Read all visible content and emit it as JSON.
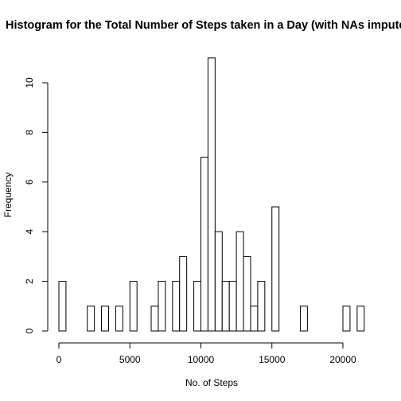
{
  "chart_data": {
    "type": "bar",
    "title": "Histogram for the Total Number of Steps taken in a Day (with NAs imputed)",
    "xlabel": "No. of Steps",
    "ylabel": "Frequency",
    "xlim": [
      0,
      22000
    ],
    "ylim": [
      0,
      11
    ],
    "bin_width": 500,
    "bin_start": 0,
    "values": [
      2,
      0,
      0,
      0,
      1,
      0,
      1,
      0,
      1,
      0,
      2,
      0,
      0,
      1,
      2,
      0,
      2,
      3,
      0,
      2,
      7,
      11,
      4,
      2,
      2,
      4,
      3,
      1,
      2,
      0,
      5,
      0,
      0,
      0,
      1,
      0,
      0,
      0,
      0,
      0,
      1,
      0,
      1
    ],
    "x_ticks": [
      0,
      5000,
      10000,
      15000,
      20000
    ],
    "x_tick_labels": [
      "0",
      "5000",
      "10000",
      "15000",
      "20000"
    ],
    "y_ticks": [
      0,
      2,
      4,
      6,
      8,
      10
    ],
    "y_tick_labels": [
      "0",
      "2",
      "4",
      "6",
      "8",
      "10"
    ],
    "grid": false,
    "legend": "none",
    "bar_fill": "#ffffff",
    "bar_stroke": "#000000"
  }
}
